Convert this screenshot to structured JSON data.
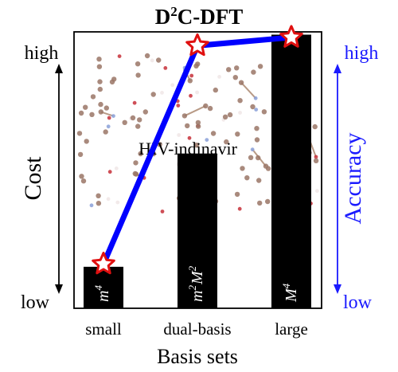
{
  "chart_data": {
    "type": "bar",
    "title": {
      "base": "D",
      "sup": "2",
      "rest": "C-DFT"
    },
    "xlabel": "Basis sets",
    "categories": [
      "small",
      "dual-basis",
      "large"
    ],
    "bar_labels": [
      [
        {
          "t": "m",
          "s": "4"
        }
      ],
      [
        {
          "t": "m",
          "s": "2"
        },
        {
          "t": "M",
          "s": "2"
        }
      ],
      [
        {
          "t": "M",
          "s": "4"
        }
      ]
    ],
    "series": [
      {
        "name": "Cost",
        "values": [
          0.15,
          0.56,
          0.99
        ]
      },
      {
        "name": "Accuracy",
        "values": [
          0.16,
          0.95,
          0.98
        ]
      }
    ],
    "ylim": [
      0,
      1
    ],
    "left_axis": {
      "label": "Cost",
      "top": "high",
      "bottom": "low"
    },
    "right_axis": {
      "label": "Accuracy",
      "top": "high",
      "bottom": "low"
    },
    "annotation": "HIV-indinavir",
    "colors": {
      "bars": "#000000",
      "accuracy_line": "#0000ff",
      "marker_fill": "#ffffff",
      "marker_edge": "#e01010",
      "axis_text_right": "#1a1aff"
    },
    "grid": false
  }
}
